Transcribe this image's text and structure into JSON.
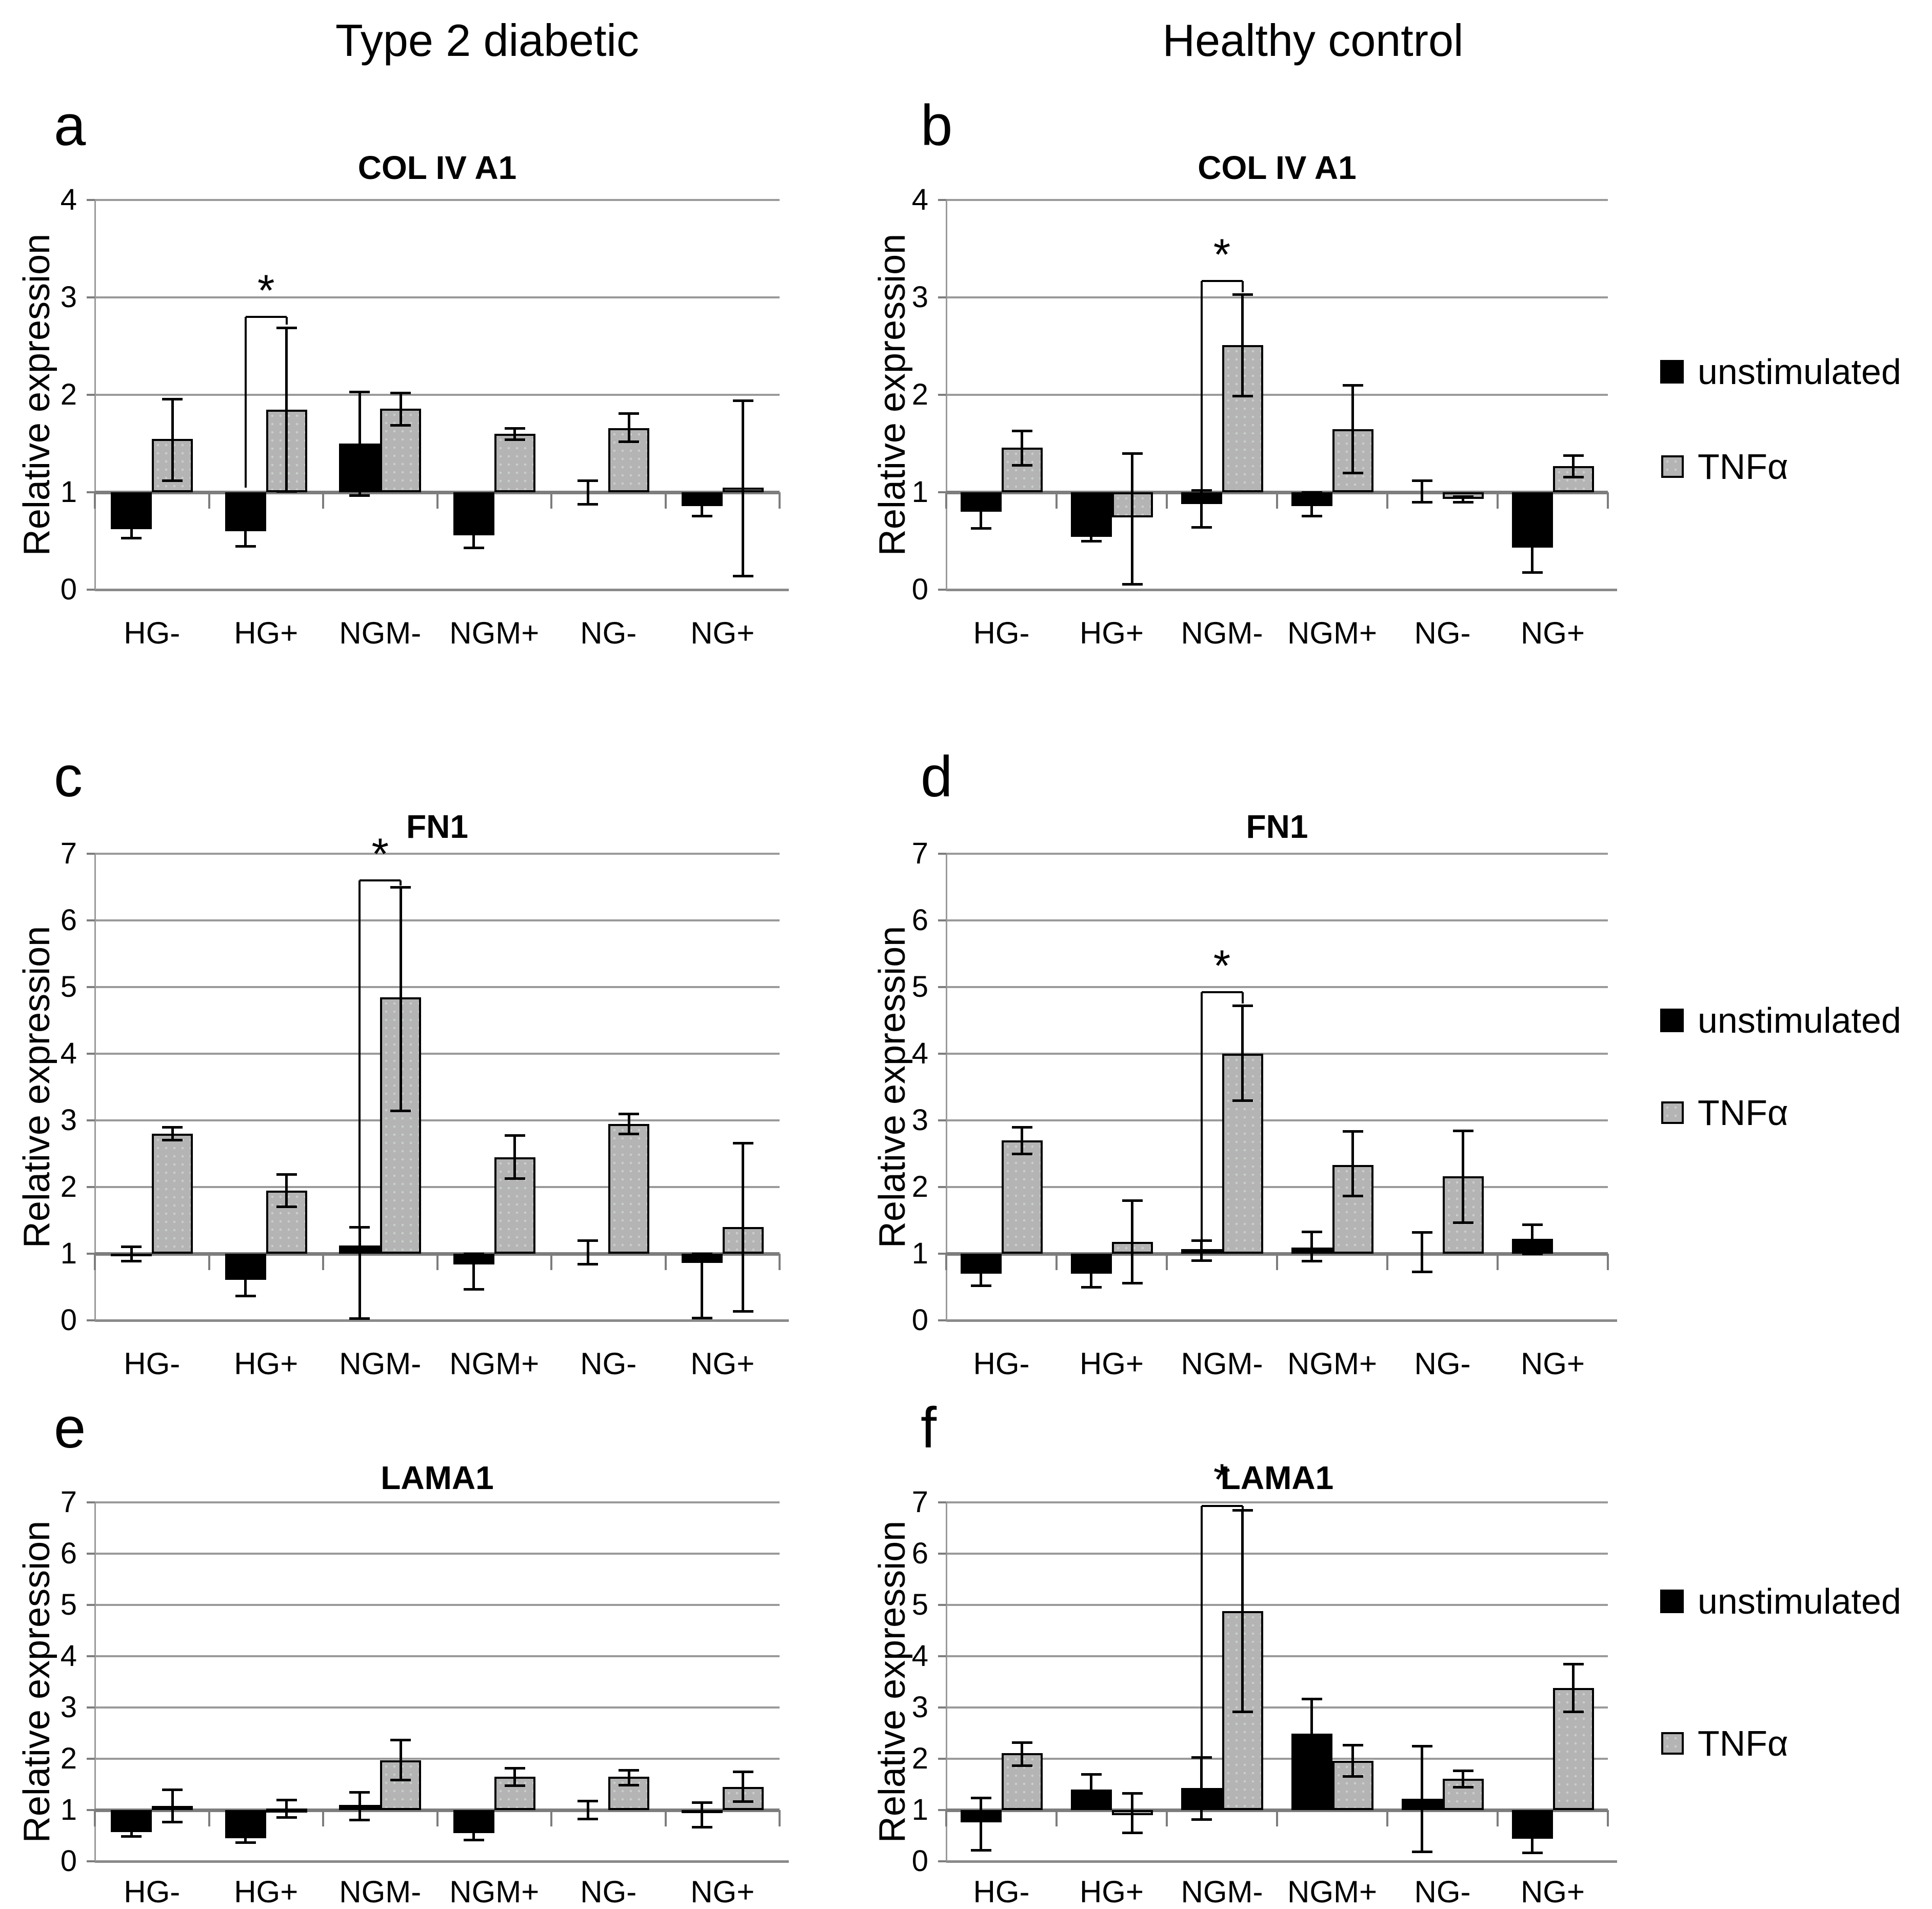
{
  "figure": {
    "column_headers": [
      "Type 2 diabetic",
      "Healthy control"
    ],
    "ylabel": "Relative expression",
    "categories": [
      "HG-",
      "HG+",
      "NGM-",
      "NGM+",
      "NG-",
      "NG+"
    ],
    "legend": [
      {
        "label": "unstimulated",
        "swatch": "black-square",
        "color": "#000000"
      },
      {
        "label": "TNFα",
        "swatch": "gray-square",
        "color": "#b4b4b4"
      }
    ],
    "colors": {
      "bar_unstimulated": "#000000",
      "bar_tnf": "#b4b4b4",
      "gridline": "#9a9a9a",
      "axis": "#7d7d7d"
    }
  },
  "chart_data": [
    {
      "panel": "a",
      "column_header": "Type 2 diabetic",
      "row": 0,
      "col": 0,
      "type": "bar",
      "title": "COL IV A1",
      "ylabel": "Relative expression",
      "ylim": [
        0,
        4
      ],
      "baseline": 1,
      "grid": true,
      "categories": [
        "HG-",
        "HG+",
        "NGM-",
        "NGM+",
        "NG-",
        "NG+"
      ],
      "series": [
        {
          "name": "unstimulated",
          "values": [
            0.62,
            0.6,
            1.5,
            0.56,
            1.0,
            0.86
          ],
          "err_lo": [
            0.53,
            0.45,
            0.97,
            0.43,
            0.88,
            0.76
          ],
          "err_hi": [
            0.7,
            0.72,
            2.03,
            0.68,
            1.12,
            0.96
          ]
        },
        {
          "name": "TNFα",
          "values": [
            1.55,
            1.85,
            1.86,
            1.6,
            1.66,
            1.05
          ],
          "err_lo": [
            1.12,
            1.01,
            1.69,
            1.54,
            1.52,
            0.14
          ],
          "err_hi": [
            1.96,
            2.69,
            2.02,
            1.66,
            1.81,
            1.94
          ]
        }
      ],
      "significance": {
        "category": "HG+",
        "label": "*",
        "bar_y": 2.8,
        "left_arm_to": 1.05,
        "right_arm_to": 2.72
      }
    },
    {
      "panel": "b",
      "column_header": "Healthy control",
      "row": 0,
      "col": 1,
      "type": "bar",
      "title": "COL IV A1",
      "ylabel": "Relative expression",
      "ylim": [
        0,
        4
      ],
      "baseline": 1,
      "grid": true,
      "categories": [
        "HG-",
        "HG+",
        "NGM-",
        "NGM+",
        "NG-",
        "NG+"
      ],
      "series": [
        {
          "name": "unstimulated",
          "values": [
            0.8,
            0.54,
            0.88,
            0.86,
            1.0,
            0.43
          ],
          "err_lo": [
            0.63,
            0.5,
            0.64,
            0.76,
            0.9,
            0.18
          ],
          "err_hi": [
            0.98,
            0.58,
            1.02,
            1.0,
            1.12,
            0.68
          ]
        },
        {
          "name": "TNFα",
          "values": [
            1.46,
            0.74,
            2.51,
            1.65,
            0.93,
            1.27
          ],
          "err_lo": [
            1.28,
            0.06,
            1.99,
            1.2,
            0.9,
            1.16
          ],
          "err_hi": [
            1.63,
            1.4,
            3.03,
            2.1,
            0.96,
            1.38
          ]
        }
      ],
      "significance": {
        "category": "NGM-",
        "label": "*",
        "bar_y": 3.17,
        "left_arm_to": 1.03,
        "right_arm_to": 3.05
      }
    },
    {
      "panel": "c",
      "column_header": "Type 2 diabetic",
      "row": 1,
      "col": 0,
      "type": "bar",
      "title": "FN1",
      "ylabel": "Relative expression",
      "ylim": [
        0,
        7
      ],
      "baseline": 1,
      "grid": true,
      "categories": [
        "HG-",
        "HG+",
        "NGM-",
        "NGM+",
        "NG-",
        "NG+"
      ],
      "series": [
        {
          "name": "unstimulated",
          "values": [
            0.96,
            0.61,
            1.12,
            0.84,
            1.0,
            0.86
          ],
          "err_lo": [
            0.89,
            0.37,
            0.03,
            0.47,
            0.85,
            0.04
          ],
          "err_hi": [
            1.11,
            0.85,
            1.4,
            1.0,
            1.2,
            1.0
          ]
        },
        {
          "name": "TNFα",
          "values": [
            2.8,
            1.95,
            4.85,
            2.45,
            2.95,
            1.4
          ],
          "err_lo": [
            2.71,
            1.71,
            3.15,
            2.13,
            2.8,
            0.14
          ],
          "err_hi": [
            2.9,
            2.19,
            6.5,
            2.78,
            3.1,
            2.66
          ]
        }
      ],
      "significance": {
        "category": "NGM-",
        "label": "*",
        "bar_y": 6.6,
        "left_arm_to": 0.02,
        "right_arm_to": 6.52
      }
    },
    {
      "panel": "d",
      "column_header": "Healthy control",
      "row": 1,
      "col": 1,
      "type": "bar",
      "title": "FN1",
      "ylabel": "Relative expression",
      "ylim": [
        0,
        7
      ],
      "baseline": 1,
      "grid": true,
      "categories": [
        "HG-",
        "HG+",
        "NGM-",
        "NGM+",
        "NG-",
        "NG+"
      ],
      "series": [
        {
          "name": "unstimulated",
          "values": [
            0.7,
            0.7,
            1.07,
            1.09,
            1.0,
            1.22
          ],
          "err_lo": [
            0.52,
            0.5,
            0.9,
            0.89,
            0.73,
            1.0
          ],
          "err_hi": [
            0.88,
            0.9,
            1.2,
            1.33,
            1.32,
            1.44
          ]
        },
        {
          "name": "TNFα",
          "values": [
            2.7,
            1.18,
            4.0,
            2.33,
            2.16,
            null
          ],
          "err_lo": [
            2.5,
            0.56,
            3.3,
            1.87,
            1.47,
            null
          ],
          "err_hi": [
            2.9,
            1.8,
            4.72,
            2.84,
            2.85,
            null
          ]
        }
      ],
      "significance": {
        "category": "NGM-",
        "label": "*",
        "bar_y": 4.92,
        "left_arm_to": 1.2,
        "right_arm_to": 4.75
      }
    },
    {
      "panel": "e",
      "column_header": "Type 2 diabetic",
      "row": 2,
      "col": 0,
      "type": "bar",
      "title": "LAMA1",
      "ylabel": "Relative expression",
      "ylim": [
        0,
        7
      ],
      "baseline": 1,
      "grid": true,
      "categories": [
        "HG-",
        "HG+",
        "NGM-",
        "NGM+",
        "NG-",
        "NG+"
      ],
      "series": [
        {
          "name": "unstimulated",
          "values": [
            0.57,
            0.45,
            1.1,
            0.55,
            1.0,
            0.94
          ],
          "err_lo": [
            0.49,
            0.37,
            0.81,
            0.42,
            0.83,
            0.67
          ],
          "err_hi": [
            0.65,
            0.53,
            1.35,
            0.68,
            1.18,
            1.15
          ]
        },
        {
          "name": "TNFα",
          "values": [
            1.08,
            1.03,
            1.97,
            1.65,
            1.65,
            1.45
          ],
          "err_lo": [
            0.77,
            0.86,
            1.59,
            1.48,
            1.49,
            1.17
          ],
          "err_hi": [
            1.4,
            1.2,
            2.37,
            1.82,
            1.78,
            1.75
          ]
        }
      ],
      "significance": null
    },
    {
      "panel": "f",
      "column_header": "Healthy control",
      "row": 2,
      "col": 1,
      "type": "bar",
      "title": "LAMA1",
      "ylabel": "Relative expression",
      "ylim": [
        0,
        7
      ],
      "baseline": 1,
      "grid": true,
      "categories": [
        "HG-",
        "HG+",
        "NGM-",
        "NGM+",
        "NG-",
        "NG+"
      ],
      "series": [
        {
          "name": "unstimulated",
          "values": [
            0.76,
            1.4,
            1.43,
            2.49,
            1.22,
            0.44
          ],
          "err_lo": [
            0.22,
            1.05,
            0.82,
            2.1,
            0.19,
            0.17
          ],
          "err_hi": [
            1.24,
            1.7,
            2.03,
            3.17,
            2.25,
            0.72
          ]
        },
        {
          "name": "TNFα",
          "values": [
            2.11,
            0.9,
            4.88,
            1.96,
            1.61,
            3.38
          ],
          "err_lo": [
            1.87,
            0.56,
            2.92,
            1.66,
            1.45,
            2.92
          ],
          "err_hi": [
            2.32,
            1.33,
            6.85,
            2.27,
            1.77,
            3.85
          ]
        }
      ],
      "significance": {
        "category": "NGM-",
        "label": "*",
        "bar_y": 6.93,
        "left_arm_to": 2.03,
        "right_arm_to": 6.87
      }
    }
  ]
}
